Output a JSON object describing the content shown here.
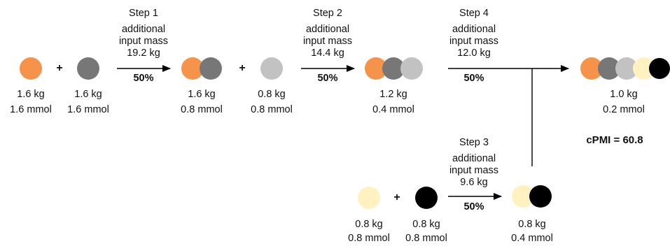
{
  "colors": {
    "orange": "#F5934B",
    "dark_gray": "#777777",
    "light_gray": "#C2C2C2",
    "cream": "#FFF2C0",
    "black": "#000000",
    "line": "#000000"
  },
  "plus": "+",
  "start_a": {
    "mass": "1.6 kg",
    "amount": "1.6 mmol"
  },
  "start_b": {
    "mass": "1.6 kg",
    "amount": "1.6 mmol"
  },
  "step1": {
    "label": "Step 1",
    "line1": "additional",
    "line2": "input mass",
    "value": "19.2 kg",
    "yield": "50%"
  },
  "int1": {
    "mass": "1.6 kg",
    "amount": "0.8 mmol"
  },
  "reagent_c": {
    "mass": "0.8 kg",
    "amount": "0.8 mmol"
  },
  "step2": {
    "label": "Step 2",
    "line1": "additional",
    "line2": "input mass",
    "value": "14.4 kg",
    "yield": "50%"
  },
  "int2": {
    "mass": "1.2 kg",
    "amount": "0.4 mmol"
  },
  "step4": {
    "label": "Step 4",
    "line1": "additional",
    "line2": "input mass",
    "value": "12.0 kg",
    "yield": "50%"
  },
  "product": {
    "mass": "1.0 kg",
    "amount": "0.2 mmol"
  },
  "cpmi": "cPMI = 60.8",
  "reagent_d": {
    "mass": "0.8 kg",
    "amount": "0.8 mmol"
  },
  "reagent_e": {
    "mass": "0.8 kg",
    "amount": "0.8 mmol"
  },
  "step3": {
    "label": "Step 3",
    "line1": "additional",
    "line2": "input mass",
    "value": "9.6 kg",
    "yield": "50%"
  },
  "int3": {
    "mass": "0.8 kg",
    "amount": "0.4 mmol"
  }
}
